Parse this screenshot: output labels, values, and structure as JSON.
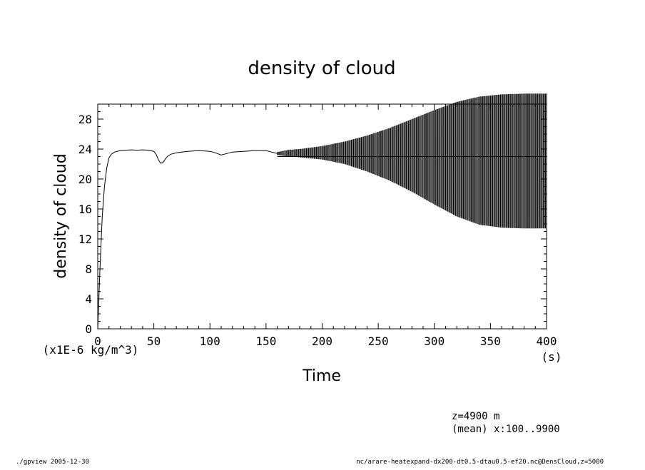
{
  "chart_data": {
    "type": "line",
    "title": "density of cloud",
    "xlabel": "Time",
    "ylabel": "density of cloud",
    "x_unit": "(s)",
    "y_unit": "(x1E-6 kg/m^3)",
    "xlim": [
      0,
      400
    ],
    "ylim": [
      0,
      30
    ],
    "x_ticks": [
      0,
      50,
      100,
      150,
      200,
      250,
      300,
      350,
      400
    ],
    "y_ticks": [
      0,
      4,
      8,
      12,
      16,
      20,
      24,
      28
    ],
    "grid": false,
    "series": [
      {
        "x": [
          0,
          2,
          4,
          6,
          8,
          10,
          12,
          15,
          20,
          25,
          30,
          35,
          40,
          45,
          50,
          52,
          54,
          56,
          58,
          60,
          62,
          65,
          70,
          75,
          80,
          90,
          100,
          105,
          110,
          115,
          120,
          130,
          140,
          150,
          155,
          160
        ],
        "y": [
          0,
          8,
          15,
          19,
          21.5,
          22.8,
          23.3,
          23.6,
          23.8,
          23.85,
          23.9,
          23.85,
          23.9,
          23.85,
          23.7,
          23.3,
          22.6,
          22.1,
          22.2,
          22.6,
          23.0,
          23.3,
          23.5,
          23.6,
          23.7,
          23.8,
          23.7,
          23.5,
          23.2,
          23.4,
          23.6,
          23.7,
          23.8,
          23.8,
          23.6,
          23.4
        ]
      }
    ],
    "oscillation_envelope": {
      "x": [
        160,
        170,
        180,
        200,
        220,
        240,
        260,
        280,
        300,
        320,
        340,
        360,
        380,
        400
      ],
      "upper": [
        23.6,
        23.9,
        24.0,
        24.4,
        25.0,
        25.8,
        26.8,
        28.0,
        29.2,
        30.3,
        31.0,
        31.3,
        31.4,
        31.4
      ],
      "lower": [
        23.2,
        23.0,
        22.9,
        22.6,
        22.0,
        21.0,
        19.8,
        18.3,
        16.6,
        15.0,
        13.9,
        13.5,
        13.4,
        13.4
      ],
      "mean": 23.0
    },
    "annotations": [
      "z=4900 m",
      "(mean) x:100..9900"
    ]
  },
  "footer": {
    "left": "./gpview  2005-12-30",
    "right": "nc/arare-heatexpand-dx200-dt0.5-dtau0.5-ef20.nc@DensCloud,z=5000"
  },
  "colors": {
    "line": "#000000",
    "background": "#ffffff"
  }
}
